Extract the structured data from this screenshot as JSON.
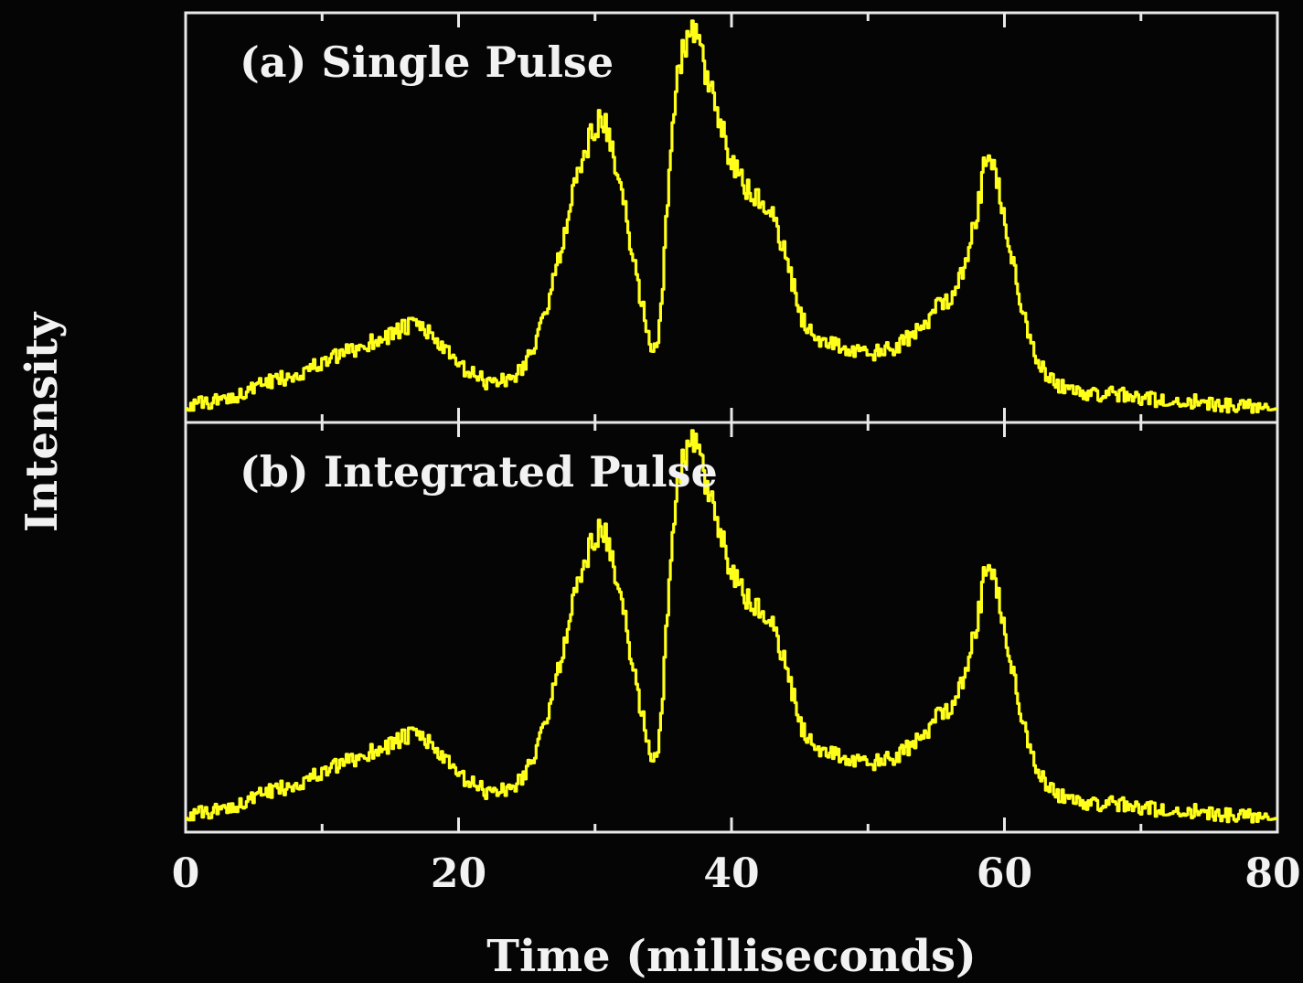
{
  "chart_data": {
    "type": "line",
    "xlabel": "Time (milliseconds)",
    "ylabel": "Intensity",
    "xlim": [
      0,
      80
    ],
    "x_ticks": [
      "0",
      "20",
      "40",
      "60",
      "80"
    ],
    "grid": false,
    "legend": "none",
    "line_color": "#ffff1a",
    "axis_color": "#e8e8e8",
    "background": "#050505",
    "panels": [
      {
        "id": "a",
        "title": "(a) Single Pulse",
        "x": [
          0,
          2,
          4,
          6,
          8,
          10,
          12,
          14,
          16,
          17,
          18,
          20,
          22,
          24,
          25,
          26,
          27,
          28,
          29,
          30,
          30.5,
          31,
          32,
          33,
          34,
          34.5,
          35,
          35.5,
          36,
          36.5,
          37,
          37.5,
          38,
          39,
          40,
          41,
          42,
          43,
          44,
          45,
          46,
          48,
          50,
          52,
          54,
          55,
          56,
          57,
          58,
          58.5,
          59,
          60,
          61,
          62,
          63,
          64,
          66,
          68,
          70,
          72,
          74,
          76,
          78,
          80
        ],
        "y": [
          0.02,
          0.03,
          0.05,
          0.08,
          0.1,
          0.13,
          0.16,
          0.19,
          0.22,
          0.23,
          0.2,
          0.12,
          0.08,
          0.09,
          0.14,
          0.22,
          0.35,
          0.52,
          0.66,
          0.74,
          0.77,
          0.7,
          0.55,
          0.35,
          0.18,
          0.16,
          0.38,
          0.7,
          0.86,
          0.95,
          0.98,
          0.96,
          0.88,
          0.76,
          0.64,
          0.58,
          0.55,
          0.5,
          0.4,
          0.25,
          0.2,
          0.17,
          0.15,
          0.17,
          0.22,
          0.28,
          0.3,
          0.38,
          0.52,
          0.65,
          0.66,
          0.5,
          0.3,
          0.17,
          0.1,
          0.07,
          0.05,
          0.05,
          0.04,
          0.03,
          0.03,
          0.02,
          0.02,
          0.02
        ]
      },
      {
        "id": "b",
        "title": "(b) Integrated Pulse",
        "x": [
          0,
          2,
          4,
          6,
          8,
          10,
          12,
          14,
          16,
          17,
          18,
          20,
          22,
          24,
          25,
          26,
          27,
          28,
          29,
          30,
          30.5,
          31,
          32,
          33,
          34,
          34.5,
          35,
          35.5,
          36,
          36.5,
          37,
          37.5,
          38,
          39,
          40,
          41,
          42,
          43,
          44,
          45,
          46,
          48,
          50,
          52,
          54,
          55,
          56,
          57,
          58,
          58.5,
          59,
          60,
          61,
          62,
          63,
          64,
          66,
          68,
          70,
          72,
          74,
          76,
          78,
          80
        ],
        "y": [
          0.02,
          0.03,
          0.05,
          0.08,
          0.1,
          0.13,
          0.16,
          0.19,
          0.22,
          0.23,
          0.2,
          0.12,
          0.08,
          0.09,
          0.14,
          0.22,
          0.35,
          0.52,
          0.66,
          0.74,
          0.77,
          0.7,
          0.55,
          0.35,
          0.18,
          0.16,
          0.38,
          0.7,
          0.86,
          0.95,
          0.98,
          0.96,
          0.88,
          0.76,
          0.64,
          0.58,
          0.55,
          0.5,
          0.4,
          0.25,
          0.2,
          0.17,
          0.15,
          0.17,
          0.22,
          0.28,
          0.3,
          0.38,
          0.52,
          0.65,
          0.66,
          0.5,
          0.3,
          0.17,
          0.1,
          0.07,
          0.05,
          0.05,
          0.04,
          0.03,
          0.03,
          0.02,
          0.02,
          0.02
        ]
      }
    ]
  }
}
